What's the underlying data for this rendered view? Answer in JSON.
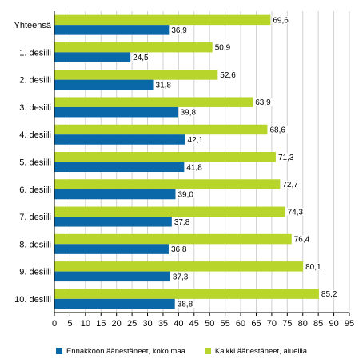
{
  "chart_data": {
    "type": "bar",
    "orientation": "horizontal",
    "categories": [
      "Yhteensä",
      "1. desiili",
      "2. desiili",
      "3. desiili",
      "4. desiili",
      "5. desiili",
      "6. desiili",
      "7. desiili",
      "8. desiili",
      "9. desiili",
      "10. desiili"
    ],
    "series": [
      {
        "name": "Ennakkoon äänestäneet, koko maa",
        "color": "#0a67a8",
        "values": [
          36.9,
          24.5,
          31.8,
          39.8,
          42.1,
          41.8,
          39.0,
          37.8,
          36.8,
          37.3,
          38.8
        ],
        "labels": [
          "36,9",
          "24,5",
          "31,8",
          "39,8",
          "42,1",
          "41,8",
          "39,0",
          "37,8",
          "36,8",
          "37,3",
          "38,8"
        ]
      },
      {
        "name": "Kaikki äänestäneet, alueilla",
        "color": "#b8d52c",
        "values": [
          69.6,
          50.9,
          52.6,
          63.9,
          68.6,
          71.3,
          72.7,
          74.3,
          76.4,
          80.1,
          85.2
        ],
        "labels": [
          "69,6",
          "50,9",
          "52,6",
          "63,9",
          "68,6",
          "71,3",
          "72,7",
          "74,3",
          "76,4",
          "80,1",
          "85,2"
        ]
      }
    ],
    "xlim": [
      0,
      95
    ],
    "xticks": [
      0,
      5,
      10,
      15,
      20,
      25,
      30,
      35,
      40,
      45,
      50,
      55,
      60,
      65,
      70,
      75,
      80,
      85,
      90,
      95
    ],
    "grid": true,
    "legend_position": "bottom",
    "title": "",
    "xlabel": "",
    "ylabel": ""
  }
}
